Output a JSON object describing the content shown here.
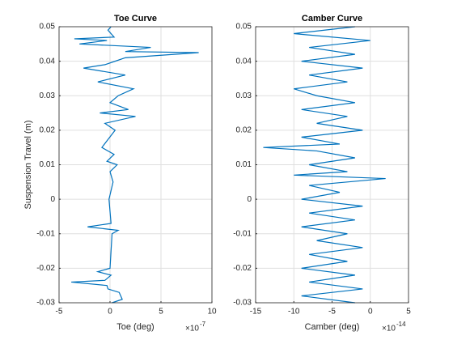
{
  "chart_data": [
    {
      "type": "line",
      "title": "Toe Curve",
      "x_label": "Toe (deg)",
      "y_label": "Suspension Travel (m)",
      "x_multiplier": "×10",
      "x_exponent": "-7",
      "color": "#0072bd",
      "grid": true,
      "xlim": [
        -5e-07,
        1e-06
      ],
      "xticks": [
        {
          "value": -5e-07,
          "label": "-5"
        },
        {
          "value": 0,
          "label": "0"
        },
        {
          "value": 5e-07,
          "label": "5"
        },
        {
          "value": 1e-06,
          "label": "10"
        }
      ],
      "ylim": [
        -0.03,
        0.05
      ],
      "yticks": [
        -0.03,
        -0.02,
        -0.01,
        0,
        0.01,
        0.02,
        0.03,
        0.04,
        0.05
      ],
      "x": [
        2e-08,
        1.2e-07,
        9e-08,
        -2e-08,
        -3e-08,
        -3.8e-07,
        -5e-08,
        1e-08,
        -1.2e-07,
        0,
        1e-08,
        2e-08,
        8e-08,
        -2.2e-07,
        1e-08,
        -1e-08,
        3e-08,
        0,
        7e-08,
        -3e-08,
        4e-08,
        -8e-08,
        5e-08,
        -5e-08,
        2.5e-07,
        -1e-07,
        1.8e-07,
        0,
        8e-08,
        2.3e-07,
        -1.2e-07,
        1.5e-07,
        -2.6e-07,
        -5e-08,
        5e-08,
        1.5e-07,
        8.7e-07,
        1.5e-07,
        4e-07,
        -3e-07,
        -3e-08,
        -3.5e-07,
        4e-08,
        -2e-08,
        1e-08
      ],
      "values": [
        -0.03,
        -0.029,
        -0.027,
        -0.026,
        -0.025,
        -0.024,
        -0.0235,
        -0.022,
        -0.021,
        -0.02,
        -0.015,
        -0.01,
        -0.009,
        -0.008,
        -0.007,
        0,
        0.005,
        0.008,
        0.01,
        0.011,
        0.013,
        0.015,
        0.02,
        0.022,
        0.024,
        0.025,
        0.026,
        0.028,
        0.03,
        0.032,
        0.034,
        0.036,
        0.038,
        0.039,
        0.04,
        0.041,
        0.0425,
        0.0428,
        0.044,
        0.045,
        0.046,
        0.0465,
        0.047,
        0.049,
        0.05
      ]
    },
    {
      "type": "line",
      "title": "Camber Curve",
      "x_label": "Camber (deg)",
      "x_multiplier": "×10",
      "x_exponent": "-14",
      "color": "#0072bd",
      "grid": true,
      "xlim": [
        -1.5e-13,
        5e-14
      ],
      "xticks": [
        {
          "value": -1.5e-13,
          "label": "-15"
        },
        {
          "value": -1e-13,
          "label": "-10"
        },
        {
          "value": -5e-14,
          "label": "-5"
        },
        {
          "value": 0,
          "label": "0"
        },
        {
          "value": 5e-14,
          "label": "5"
        }
      ],
      "ylim": [
        -0.03,
        0.05
      ],
      "yticks": [
        -0.03,
        -0.02,
        -0.01,
        0,
        0.01,
        0.02,
        0.03,
        0.04,
        0.05
      ],
      "x": [
        -2e-14,
        -9e-14,
        -1e-14,
        -8e-14,
        -2e-14,
        -9e-14,
        -3e-14,
        -8e-14,
        -1e-14,
        -7e-14,
        -3e-14,
        -9e-14,
        -2e-14,
        -8e-14,
        -1e-14,
        -9e-14,
        -4e-14,
        -8e-14,
        2e-14,
        -1e-13,
        -3e-14,
        -8e-14,
        -2e-14,
        -7e-14,
        -1.4e-13,
        -4e-14,
        -9e-14,
        -1e-14,
        -7e-14,
        -3e-14,
        -9e-14,
        -2e-14,
        -7e-14,
        -1e-13,
        -3e-14,
        -8e-14,
        -1e-14,
        -9e-14,
        -2e-14,
        -8e-14,
        0,
        -1e-13,
        -2e-14
      ],
      "values": [
        -0.03,
        -0.028,
        -0.026,
        -0.024,
        -0.022,
        -0.02,
        -0.018,
        -0.016,
        -0.014,
        -0.012,
        -0.01,
        -0.008,
        -0.006,
        -0.004,
        -0.002,
        0,
        0.002,
        0.004,
        0.006,
        0.007,
        0.008,
        0.01,
        0.012,
        0.014,
        0.015,
        0.016,
        0.018,
        0.02,
        0.022,
        0.024,
        0.026,
        0.028,
        0.03,
        0.032,
        0.034,
        0.036,
        0.038,
        0.04,
        0.042,
        0.044,
        0.046,
        0.048,
        0.05
      ]
    }
  ]
}
